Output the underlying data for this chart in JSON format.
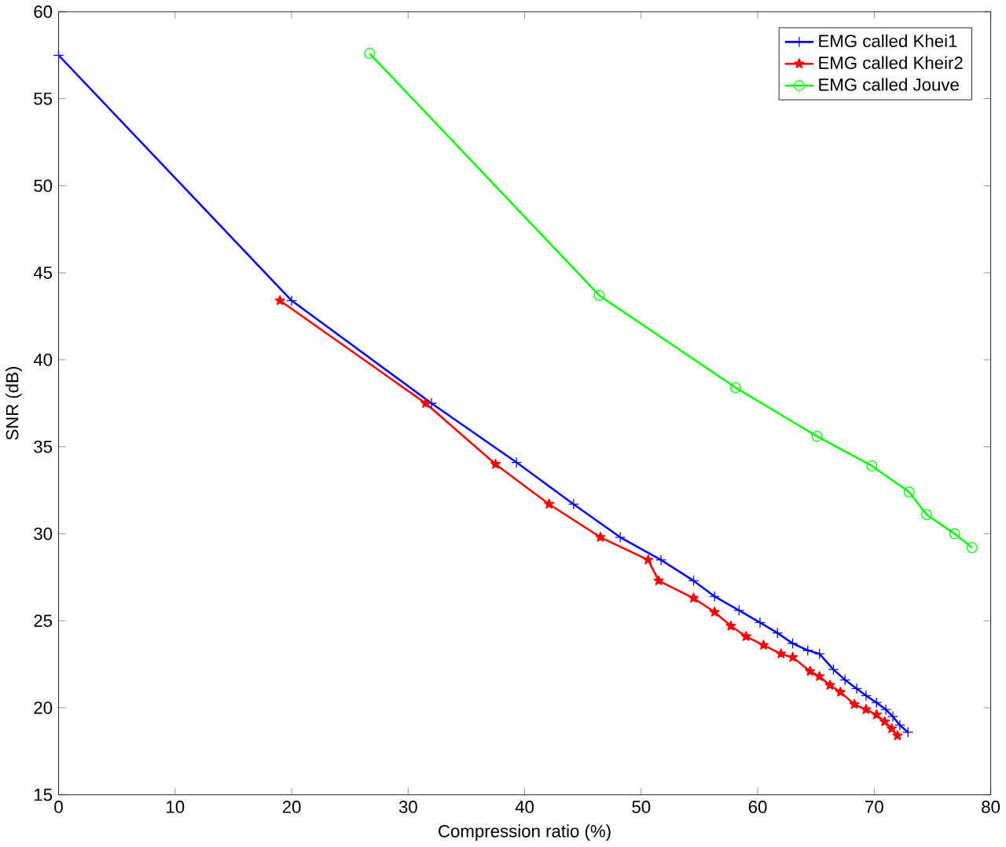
{
  "chart_data": {
    "type": "line",
    "xlabel": "Compression ratio (%)",
    "ylabel": "SNR (dB)",
    "xlim": [
      0,
      80
    ],
    "ylim": [
      15,
      60
    ],
    "xticks": [
      0,
      10,
      20,
      30,
      40,
      50,
      60,
      70,
      80
    ],
    "yticks": [
      15,
      20,
      25,
      30,
      35,
      40,
      45,
      50,
      55,
      60
    ],
    "grid": false,
    "legend": "top right",
    "line_style": "solid",
    "series": [
      {
        "name": "EMG called Khei1",
        "color": "#0000ff",
        "marker": "cross",
        "x": [
          0,
          20,
          32,
          39.3,
          44.2,
          48.2,
          51.7,
          54.5,
          56.3,
          58.4,
          60.2,
          61.7,
          63,
          64.3,
          65.3,
          66.5,
          67.5,
          68.5,
          69.3,
          70.2,
          71,
          71.6,
          72.2,
          72.9
        ],
        "values": [
          57.5,
          43.4,
          37.5,
          34.1,
          31.7,
          29.8,
          28.5,
          27.3,
          26.4,
          25.6,
          24.9,
          24.3,
          23.7,
          23.3,
          23.1,
          22.2,
          21.6,
          21.1,
          20.7,
          20.3,
          19.9,
          19.5,
          19.0,
          18.6
        ]
      },
      {
        "name": "EMG called Kheir2",
        "color": "#ff0000",
        "marker": "star",
        "x": [
          19,
          31.5,
          37.5,
          42.1,
          46.5,
          50.6,
          51.5,
          54.5,
          56.3,
          57.7,
          59,
          60.5,
          62,
          63,
          64.5,
          65.3,
          66.2,
          67.1,
          68.3,
          69.3,
          70.2,
          70.9,
          71.5,
          72
        ],
        "values": [
          43.4,
          37.5,
          34.0,
          31.7,
          29.8,
          28.5,
          27.3,
          26.3,
          25.5,
          24.7,
          24.1,
          23.6,
          23.1,
          22.9,
          22.1,
          21.8,
          21.3,
          20.9,
          20.2,
          19.9,
          19.6,
          19.2,
          18.8,
          18.4
        ]
      },
      {
        "name": "EMG called Jouve",
        "color": "#00ff00",
        "marker": "circle",
        "x": [
          26.7,
          46.4,
          58.1,
          65.1,
          69.8,
          73.0,
          74.5,
          76.9,
          78.4
        ],
        "values": [
          57.6,
          43.7,
          38.4,
          35.6,
          33.9,
          32.4,
          31.1,
          30.0,
          29.2
        ]
      }
    ]
  }
}
